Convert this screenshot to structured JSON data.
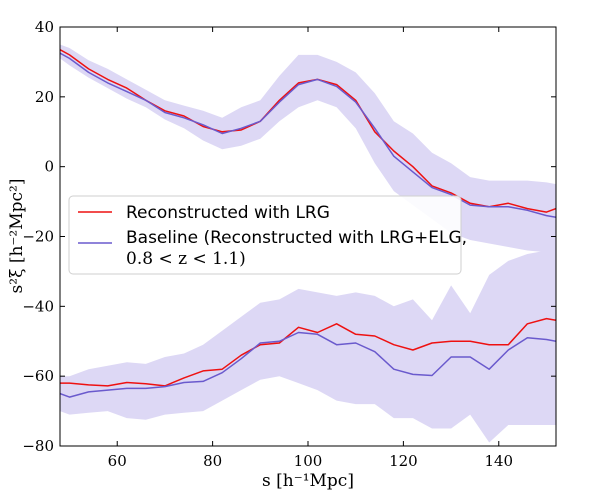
{
  "chart_data": {
    "type": "line",
    "title": "",
    "xlabel": "s [h⁻¹Mpc]",
    "ylabel": "s²ξ [h⁻²Mpc²]",
    "xlim": [
      48,
      152
    ],
    "ylim": [
      -80,
      40
    ],
    "x_ticks": [
      60,
      80,
      100,
      120,
      140
    ],
    "y_ticks": [
      -80,
      -60,
      -40,
      -20,
      0,
      20,
      40
    ],
    "colors": {
      "lrg": "#ee1111",
      "baseline": "#6a5acd",
      "band": "#ddd8f5"
    },
    "legend": {
      "position": "center-left",
      "entries": [
        {
          "label": "Reconstructed with LRG"
        },
        {
          "label": "Baseline (Reconstructed with LRG+ELG,",
          "label_line2": "0.8 < z < 1.1)"
        }
      ]
    },
    "series": [
      {
        "name": "Reconstructed with LRG - monopole",
        "x": [
          48,
          50,
          54,
          58,
          62,
          66,
          70,
          74,
          78,
          82,
          86,
          90,
          94,
          98,
          102,
          106,
          110,
          114,
          118,
          122,
          126,
          130,
          134,
          138,
          142,
          146,
          150,
          152
        ],
        "values": [
          33.5,
          32,
          28,
          25,
          22.5,
          19,
          16,
          14.5,
          11.5,
          10,
          10.5,
          13,
          19,
          24,
          25,
          23.5,
          19,
          10,
          4.5,
          0,
          -5.5,
          -7.5,
          -10.5,
          -11.5,
          -10.5,
          -12,
          -13,
          -12
        ]
      },
      {
        "name": "Baseline - monopole",
        "x": [
          48,
          50,
          54,
          58,
          62,
          66,
          70,
          74,
          78,
          82,
          86,
          90,
          94,
          98,
          102,
          106,
          110,
          114,
          118,
          122,
          126,
          130,
          134,
          138,
          142,
          146,
          150,
          152
        ],
        "values": [
          32.5,
          31,
          27,
          24,
          21.5,
          19,
          15.5,
          14,
          12,
          9.5,
          11,
          13,
          18.5,
          23.5,
          25,
          23,
          18.5,
          11,
          3,
          -1.5,
          -6,
          -8,
          -11,
          -11.5,
          -11.5,
          -12.5,
          -14,
          -14.5
        ]
      },
      {
        "name": "Reconstructed with LRG - quadrupole",
        "x": [
          48,
          50,
          54,
          58,
          62,
          66,
          70,
          74,
          78,
          82,
          86,
          90,
          94,
          98,
          102,
          106,
          110,
          114,
          118,
          122,
          126,
          130,
          134,
          138,
          142,
          146,
          150,
          152
        ],
        "values": [
          -62,
          -62,
          -62.5,
          -62.8,
          -61.8,
          -62.2,
          -62.8,
          -60.5,
          -58.5,
          -58,
          -54,
          -51,
          -50.5,
          -46,
          -47.5,
          -45,
          -48,
          -48.5,
          -51,
          -52.5,
          -50.5,
          -50,
          -50,
          -51,
          -51,
          -45,
          -43.5,
          -44
        ]
      },
      {
        "name": "Baseline - quadrupole",
        "x": [
          48,
          50,
          54,
          58,
          62,
          66,
          70,
          74,
          78,
          82,
          86,
          90,
          94,
          98,
          102,
          106,
          110,
          114,
          118,
          122,
          126,
          130,
          134,
          138,
          142,
          146,
          150,
          152
        ],
        "values": [
          -65,
          -66,
          -64.5,
          -64,
          -63.5,
          -63.5,
          -63,
          -61.8,
          -61.5,
          -59,
          -55,
          -50.5,
          -50,
          -47.5,
          -48,
          -51,
          -50.5,
          -53,
          -58,
          -59.5,
          -59.8,
          -54.5,
          -54.5,
          -58,
          -52.5,
          -49,
          -49.5,
          -50
        ]
      }
    ],
    "bands": [
      {
        "name": "Baseline monopole uncertainty",
        "x": [
          48,
          50,
          54,
          58,
          62,
          66,
          70,
          74,
          78,
          82,
          86,
          90,
          94,
          98,
          102,
          106,
          110,
          114,
          118,
          122,
          126,
          130,
          134,
          138,
          142,
          146,
          150,
          152
        ],
        "lower": [
          31,
          29,
          25.5,
          22.5,
          19.5,
          17,
          13.5,
          11,
          7.5,
          5,
          6,
          8,
          13,
          17,
          19,
          17,
          11,
          1,
          -7,
          -11,
          -15,
          -19,
          -21,
          -22,
          -23,
          -24,
          -24.5,
          -24.5
        ],
        "upper": [
          35,
          34,
          30.5,
          28,
          25,
          22,
          19,
          17.5,
          16,
          14,
          17,
          19,
          26,
          32,
          32,
          30,
          27,
          21,
          13,
          9.5,
          4,
          1,
          -3,
          -4,
          -4,
          -4,
          -4.5,
          -5
        ]
      },
      {
        "name": "Baseline quadrupole uncertainty",
        "x": [
          48,
          50,
          54,
          58,
          62,
          66,
          70,
          74,
          78,
          82,
          86,
          90,
          94,
          98,
          102,
          106,
          110,
          114,
          118,
          122,
          126,
          130,
          134,
          138,
          142,
          146,
          150,
          152
        ],
        "lower": [
          -70,
          -71,
          -70.5,
          -70,
          -72,
          -72.5,
          -71,
          -70.5,
          -70,
          -67,
          -64,
          -61,
          -60,
          -62,
          -64,
          -67,
          -68,
          -68,
          -72,
          -72,
          -75,
          -75,
          -71,
          -79,
          -74,
          -74,
          -74,
          -74
        ],
        "upper": [
          -60,
          -60,
          -58,
          -57,
          -56,
          -56.5,
          -54.5,
          -53.5,
          -51,
          -47,
          -43,
          -39,
          -38,
          -35,
          -36,
          -37,
          -36,
          -37,
          -40,
          -38,
          -44,
          -34,
          -42,
          -31,
          -27,
          -25,
          -24,
          -24
        ]
      }
    ]
  }
}
